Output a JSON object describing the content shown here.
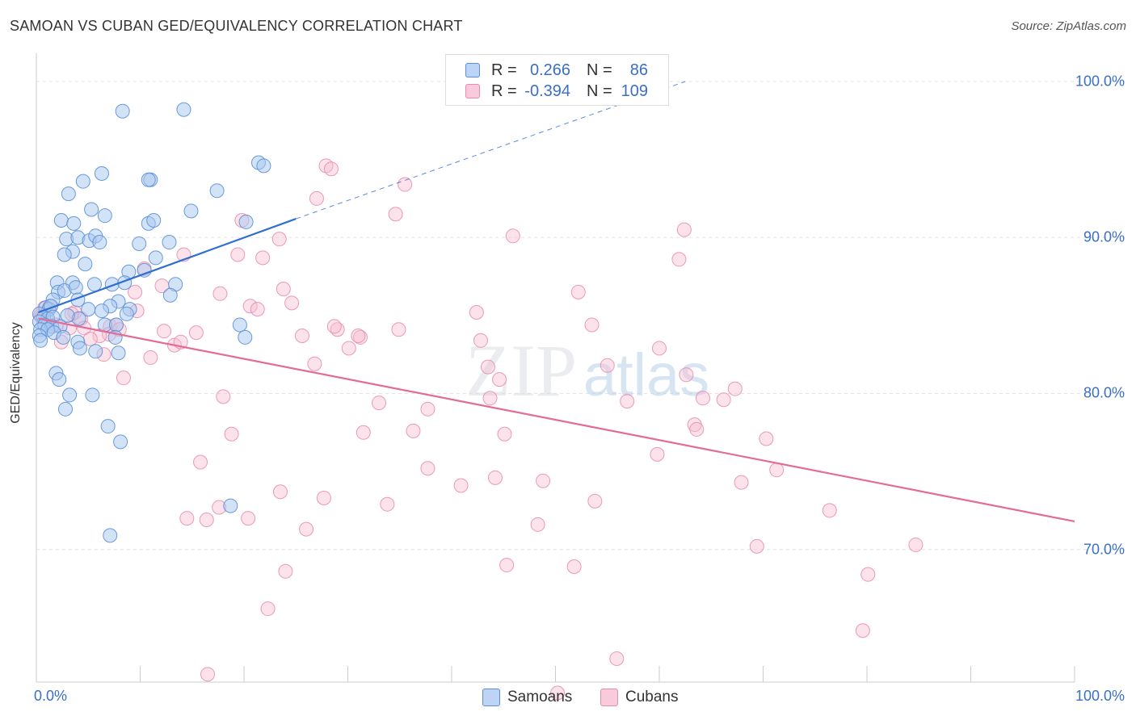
{
  "header": {
    "title": "SAMOAN VS CUBAN GED/EQUIVALENCY CORRELATION CHART",
    "source": "Source: ZipAtlas.com"
  },
  "legend": {
    "rows": [
      {
        "r_label": "R =",
        "r_value": "0.266",
        "n_label": "N =",
        "n_value": "86"
      },
      {
        "r_label": "R =",
        "r_value": "-0.394",
        "n_label": "N =",
        "n_value": "109"
      }
    ],
    "bottom": [
      "Samoans",
      "Cubans"
    ]
  },
  "watermark": {
    "zip": "ZIP",
    "atlas": "atlas"
  },
  "chart_data": {
    "type": "scatter",
    "title": "SAMOAN VS CUBAN GED/EQUIVALENCY CORRELATION CHART",
    "xlabel": "",
    "ylabel": "GED/Equivalency",
    "xlim": [
      0,
      100
    ],
    "ylim": [
      61.5,
      101.5
    ],
    "x_tick_labels": [
      "0.0%",
      "100.0%"
    ],
    "y_ticks": [
      70,
      80,
      90,
      100
    ],
    "y_tick_labels": [
      "70.0%",
      "80.0%",
      "90.0%",
      "100.0%"
    ],
    "grid": true,
    "legend_position": "top-center",
    "colors": {
      "samoans_fill": "#a8c8f0",
      "samoans_stroke": "#5b8fd6",
      "samoans_line": "#2e6fd0",
      "cubans_fill": "#f7bfd2",
      "cubans_stroke": "#e88aab",
      "cubans_line": "#e36b96",
      "tick_text": "#3a6fc4",
      "grid": "#e4e4e4"
    },
    "series": [
      {
        "name": "Samoans",
        "R": 0.266,
        "N": 86,
        "trend": {
          "x0": 0.2,
          "y0": 85.2,
          "x1": 25.0,
          "y1": 91.2,
          "dash_to_x": 62.5,
          "dash_to_y": 100.0
        },
        "points": [
          [
            8.3,
            98.1
          ],
          [
            14.2,
            98.2
          ],
          [
            21.4,
            94.8
          ],
          [
            21.9,
            94.6
          ],
          [
            6.3,
            94.1
          ],
          [
            4.5,
            93.6
          ],
          [
            11.0,
            93.7
          ],
          [
            10.8,
            93.7
          ],
          [
            3.1,
            92.8
          ],
          [
            17.4,
            93.0
          ],
          [
            5.3,
            91.8
          ],
          [
            6.6,
            91.4
          ],
          [
            14.9,
            91.7
          ],
          [
            2.4,
            91.1
          ],
          [
            3.6,
            90.9
          ],
          [
            10.8,
            90.9
          ],
          [
            11.3,
            91.1
          ],
          [
            20.2,
            91.0
          ],
          [
            2.9,
            89.9
          ],
          [
            4.0,
            90.0
          ],
          [
            5.1,
            89.8
          ],
          [
            5.7,
            90.1
          ],
          [
            6.1,
            89.7
          ],
          [
            9.9,
            89.6
          ],
          [
            12.8,
            89.7
          ],
          [
            3.5,
            89.1
          ],
          [
            2.7,
            88.9
          ],
          [
            11.5,
            88.7
          ],
          [
            4.7,
            88.3
          ],
          [
            8.9,
            87.8
          ],
          [
            10.4,
            87.9
          ],
          [
            2.0,
            87.1
          ],
          [
            3.5,
            87.1
          ],
          [
            5.6,
            87.0
          ],
          [
            7.3,
            87.0
          ],
          [
            8.5,
            87.1
          ],
          [
            13.4,
            87.0
          ],
          [
            2.1,
            86.5
          ],
          [
            2.7,
            86.6
          ],
          [
            3.8,
            86.8
          ],
          [
            1.6,
            86.0
          ],
          [
            4.0,
            86.0
          ],
          [
            7.9,
            85.9
          ],
          [
            0.9,
            85.5
          ],
          [
            1.2,
            85.4
          ],
          [
            1.4,
            85.6
          ],
          [
            7.1,
            85.6
          ],
          [
            5.0,
            85.4
          ],
          [
            6.3,
            85.3
          ],
          [
            9.0,
            85.4
          ],
          [
            0.3,
            85.1
          ],
          [
            0.7,
            84.9
          ],
          [
            1.1,
            84.8
          ],
          [
            1.6,
            84.9
          ],
          [
            4.1,
            84.8
          ],
          [
            0.3,
            84.6
          ],
          [
            0.8,
            84.4
          ],
          [
            1.5,
            84.3
          ],
          [
            2.3,
            84.3
          ],
          [
            6.6,
            84.4
          ],
          [
            7.7,
            84.4
          ],
          [
            19.6,
            84.4
          ],
          [
            0.4,
            84.1
          ],
          [
            1.1,
            84.1
          ],
          [
            1.7,
            83.9
          ],
          [
            0.3,
            83.7
          ],
          [
            0.4,
            83.4
          ],
          [
            2.6,
            83.6
          ],
          [
            7.6,
            83.6
          ],
          [
            20.1,
            83.6
          ],
          [
            4.0,
            83.3
          ],
          [
            4.2,
            82.9
          ],
          [
            5.7,
            82.7
          ],
          [
            7.9,
            82.6
          ],
          [
            1.9,
            81.3
          ],
          [
            2.2,
            80.9
          ],
          [
            3.2,
            79.9
          ],
          [
            5.4,
            79.9
          ],
          [
            2.8,
            79.0
          ],
          [
            6.9,
            77.9
          ],
          [
            8.1,
            76.9
          ],
          [
            18.7,
            72.8
          ],
          [
            7.1,
            70.9
          ],
          [
            8.7,
            85.1
          ],
          [
            12.9,
            86.3
          ],
          [
            3.0,
            85.0
          ]
        ]
      },
      {
        "name": "Cubans",
        "R": -0.394,
        "N": 109,
        "trend": {
          "x0": 0.2,
          "y0": 84.8,
          "x1": 100.0,
          "y1": 71.8
        },
        "points": [
          [
            27.9,
            94.6
          ],
          [
            28.4,
            94.4
          ],
          [
            35.5,
            93.4
          ],
          [
            27.0,
            92.5
          ],
          [
            34.6,
            91.5
          ],
          [
            19.8,
            91.1
          ],
          [
            45.9,
            90.1
          ],
          [
            23.4,
            89.9
          ],
          [
            62.4,
            90.5
          ],
          [
            19.4,
            88.9
          ],
          [
            21.8,
            88.7
          ],
          [
            14.2,
            88.9
          ],
          [
            61.9,
            88.6
          ],
          [
            10.4,
            88.0
          ],
          [
            12.1,
            86.9
          ],
          [
            23.8,
            86.7
          ],
          [
            20.6,
            85.6
          ],
          [
            24.6,
            85.8
          ],
          [
            52.2,
            86.5
          ],
          [
            9.5,
            86.5
          ],
          [
            17.7,
            86.4
          ],
          [
            21.3,
            85.4
          ],
          [
            9.7,
            85.3
          ],
          [
            42.4,
            85.2
          ],
          [
            0.8,
            85.5
          ],
          [
            1.3,
            85.6
          ],
          [
            0.4,
            85.0
          ],
          [
            3.7,
            85.2
          ],
          [
            4.3,
            84.8
          ],
          [
            7.1,
            84.3
          ],
          [
            7.7,
            84.4
          ],
          [
            53.5,
            84.4
          ],
          [
            3.2,
            84.2
          ],
          [
            4.6,
            84.2
          ],
          [
            12.3,
            84.0
          ],
          [
            7.0,
            83.8
          ],
          [
            6.1,
            83.7
          ],
          [
            15.4,
            83.9
          ],
          [
            25.6,
            83.7
          ],
          [
            29.0,
            84.1
          ],
          [
            31.2,
            83.6
          ],
          [
            31.0,
            83.7
          ],
          [
            34.9,
            84.1
          ],
          [
            42.8,
            83.4
          ],
          [
            13.3,
            83.1
          ],
          [
            13.9,
            83.3
          ],
          [
            30.1,
            82.9
          ],
          [
            60.0,
            82.9
          ],
          [
            1.1,
            84.6
          ],
          [
            1.9,
            84.4
          ],
          [
            8.0,
            84.1
          ],
          [
            2.4,
            83.3
          ],
          [
            5.2,
            83.5
          ],
          [
            6.5,
            82.5
          ],
          [
            11.0,
            82.3
          ],
          [
            26.8,
            81.9
          ],
          [
            43.5,
            81.7
          ],
          [
            55.0,
            81.8
          ],
          [
            8.4,
            81.0
          ],
          [
            44.6,
            80.9
          ],
          [
            62.6,
            81.2
          ],
          [
            67.3,
            80.3
          ],
          [
            18.0,
            79.8
          ],
          [
            43.7,
            79.7
          ],
          [
            33.0,
            79.4
          ],
          [
            66.2,
            79.6
          ],
          [
            56.9,
            79.5
          ],
          [
            64.2,
            79.7
          ],
          [
            37.7,
            79.0
          ],
          [
            63.4,
            78.0
          ],
          [
            18.8,
            77.4
          ],
          [
            31.5,
            77.5
          ],
          [
            36.3,
            77.6
          ],
          [
            45.1,
            77.4
          ],
          [
            63.6,
            77.7
          ],
          [
            70.3,
            77.1
          ],
          [
            59.8,
            76.1
          ],
          [
            15.8,
            75.6
          ],
          [
            37.7,
            75.2
          ],
          [
            71.3,
            75.1
          ],
          [
            44.2,
            74.6
          ],
          [
            48.8,
            74.4
          ],
          [
            40.9,
            74.1
          ],
          [
            67.9,
            74.3
          ],
          [
            23.5,
            73.7
          ],
          [
            27.7,
            73.3
          ],
          [
            33.8,
            72.9
          ],
          [
            53.8,
            73.1
          ],
          [
            17.6,
            72.7
          ],
          [
            20.4,
            72.0
          ],
          [
            14.5,
            72.0
          ],
          [
            16.4,
            71.9
          ],
          [
            76.4,
            72.5
          ],
          [
            48.3,
            71.6
          ],
          [
            26.0,
            71.3
          ],
          [
            84.7,
            70.3
          ],
          [
            69.4,
            70.2
          ],
          [
            45.3,
            69.0
          ],
          [
            51.8,
            68.9
          ],
          [
            24.0,
            68.6
          ],
          [
            80.1,
            68.4
          ],
          [
            22.3,
            66.2
          ],
          [
            79.6,
            64.8
          ],
          [
            55.9,
            63.0
          ],
          [
            16.5,
            62.0
          ],
          [
            50.2,
            60.8
          ],
          [
            28.7,
            84.3
          ],
          [
            3.4,
            85.1
          ],
          [
            0.5,
            84.9
          ]
        ]
      }
    ]
  }
}
